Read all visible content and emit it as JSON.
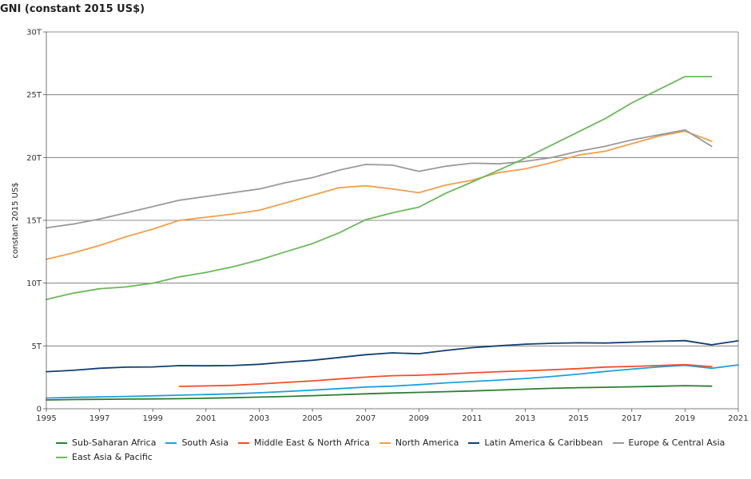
{
  "chart_data": {
    "type": "line",
    "title": "GNI (constant 2015 US$)",
    "ylabel": "constant 2015 US$",
    "xlabel": "",
    "xlim": [
      1995,
      2021
    ],
    "ylim": [
      0,
      30
    ],
    "x_ticks": [
      "1995",
      "1997",
      "1999",
      "2001",
      "2003",
      "2005",
      "2007",
      "2009",
      "2011",
      "2013",
      "2015",
      "2017",
      "2019",
      "2021"
    ],
    "y_ticks": [
      {
        "value": 0,
        "label": "0"
      },
      {
        "value": 5,
        "label": "5T"
      },
      {
        "value": 10,
        "label": "10T"
      },
      {
        "value": 15,
        "label": "15T"
      },
      {
        "value": 20,
        "label": "20T"
      },
      {
        "value": 25,
        "label": "25T"
      },
      {
        "value": 30,
        "label": "30T"
      }
    ],
    "grid": true,
    "legend_position": "bottom",
    "series": [
      {
        "name": "Sub-Saharan Africa",
        "color": "#2e7d32",
        "x": [
          1995,
          1996,
          1997,
          1998,
          1999,
          2000,
          2001,
          2002,
          2003,
          2004,
          2005,
          2006,
          2007,
          2008,
          2009,
          2010,
          2011,
          2012,
          2013,
          2014,
          2015,
          2016,
          2017,
          2018,
          2019,
          2020
        ],
        "y": [
          0.7,
          0.73,
          0.75,
          0.77,
          0.78,
          0.8,
          0.84,
          0.88,
          0.93,
          0.98,
          1.04,
          1.11,
          1.19,
          1.25,
          1.3,
          1.36,
          1.42,
          1.49,
          1.56,
          1.63,
          1.68,
          1.71,
          1.75,
          1.79,
          1.84,
          1.8
        ]
      },
      {
        "name": "South Asia",
        "color": "#1ea0dc",
        "x": [
          1995,
          1996,
          1997,
          1998,
          1999,
          2000,
          2001,
          2002,
          2003,
          2004,
          2005,
          2006,
          2007,
          2008,
          2009,
          2010,
          2011,
          2012,
          2013,
          2014,
          2015,
          2016,
          2017,
          2018,
          2019,
          2020,
          2021
        ],
        "y": [
          0.85,
          0.9,
          0.94,
          0.98,
          1.03,
          1.08,
          1.13,
          1.19,
          1.27,
          1.37,
          1.48,
          1.6,
          1.73,
          1.8,
          1.92,
          2.06,
          2.17,
          2.28,
          2.41,
          2.57,
          2.76,
          2.97,
          3.15,
          3.33,
          3.46,
          3.22,
          3.49
        ]
      },
      {
        "name": "Middle East & North Africa",
        "color": "#f0502a",
        "x": [
          2000,
          2001,
          2002,
          2003,
          2004,
          2005,
          2006,
          2007,
          2008,
          2009,
          2010,
          2011,
          2012,
          2013,
          2014,
          2015,
          2016,
          2017,
          2018,
          2019,
          2020
        ],
        "y": [
          1.78,
          1.82,
          1.86,
          1.97,
          2.1,
          2.22,
          2.37,
          2.52,
          2.63,
          2.67,
          2.75,
          2.86,
          2.95,
          3.02,
          3.1,
          3.2,
          3.32,
          3.37,
          3.44,
          3.51,
          3.35
        ]
      },
      {
        "name": "North America",
        "color": "#f0a04b",
        "x": [
          1995,
          1996,
          1997,
          1998,
          1999,
          2000,
          2001,
          2002,
          2003,
          2004,
          2005,
          2006,
          2007,
          2008,
          2009,
          2010,
          2011,
          2012,
          2013,
          2014,
          2015,
          2016,
          2017,
          2018,
          2019,
          2020
        ],
        "y": [
          11.9,
          12.4,
          13.0,
          13.7,
          14.3,
          15.0,
          15.25,
          15.5,
          15.8,
          16.4,
          17.0,
          17.6,
          17.75,
          17.5,
          17.2,
          17.8,
          18.2,
          18.8,
          19.1,
          19.6,
          20.2,
          20.5,
          21.1,
          21.7,
          22.1,
          21.3
        ]
      },
      {
        "name": "Latin America & Caribbean",
        "color": "#123f6e",
        "x": [
          1995,
          1996,
          1997,
          1998,
          1999,
          2000,
          2001,
          2002,
          2003,
          2004,
          2005,
          2006,
          2007,
          2008,
          2009,
          2010,
          2011,
          2012,
          2013,
          2014,
          2015,
          2016,
          2017,
          2018,
          2019,
          2020,
          2021
        ],
        "y": [
          2.95,
          3.06,
          3.22,
          3.31,
          3.33,
          3.43,
          3.42,
          3.44,
          3.54,
          3.71,
          3.86,
          4.08,
          4.3,
          4.45,
          4.38,
          4.64,
          4.86,
          5.01,
          5.14,
          5.21,
          5.25,
          5.23,
          5.3,
          5.37,
          5.42,
          5.09,
          5.41
        ]
      },
      {
        "name": "Europe & Central Asia",
        "color": "#9a9a9a",
        "x": [
          1995,
          1996,
          1997,
          1998,
          1999,
          2000,
          2001,
          2002,
          2003,
          2004,
          2005,
          2006,
          2007,
          2008,
          2009,
          2010,
          2011,
          2012,
          2013,
          2014,
          2015,
          2016,
          2017,
          2018,
          2019,
          2020
        ],
        "y": [
          14.4,
          14.7,
          15.1,
          15.6,
          16.1,
          16.6,
          16.9,
          17.2,
          17.5,
          18.0,
          18.4,
          19.0,
          19.45,
          19.4,
          18.9,
          19.3,
          19.55,
          19.5,
          19.7,
          20.0,
          20.5,
          20.9,
          21.4,
          21.8,
          22.2,
          20.9
        ]
      },
      {
        "name": "East Asia & Pacific",
        "color": "#6bb85a",
        "x": [
          1995,
          1996,
          1997,
          1998,
          1999,
          2000,
          2001,
          2002,
          2003,
          2004,
          2005,
          2006,
          2007,
          2008,
          2009,
          2010,
          2011,
          2012,
          2013,
          2014,
          2015,
          2016,
          2017,
          2018,
          2019,
          2020
        ],
        "y": [
          8.7,
          9.2,
          9.55,
          9.7,
          10.0,
          10.5,
          10.85,
          11.3,
          11.85,
          12.5,
          13.15,
          14.0,
          15.05,
          15.6,
          16.05,
          17.15,
          18.05,
          19.0,
          19.95,
          21.0,
          22.05,
          23.1,
          24.35,
          25.4,
          26.45,
          26.45
        ]
      }
    ]
  }
}
